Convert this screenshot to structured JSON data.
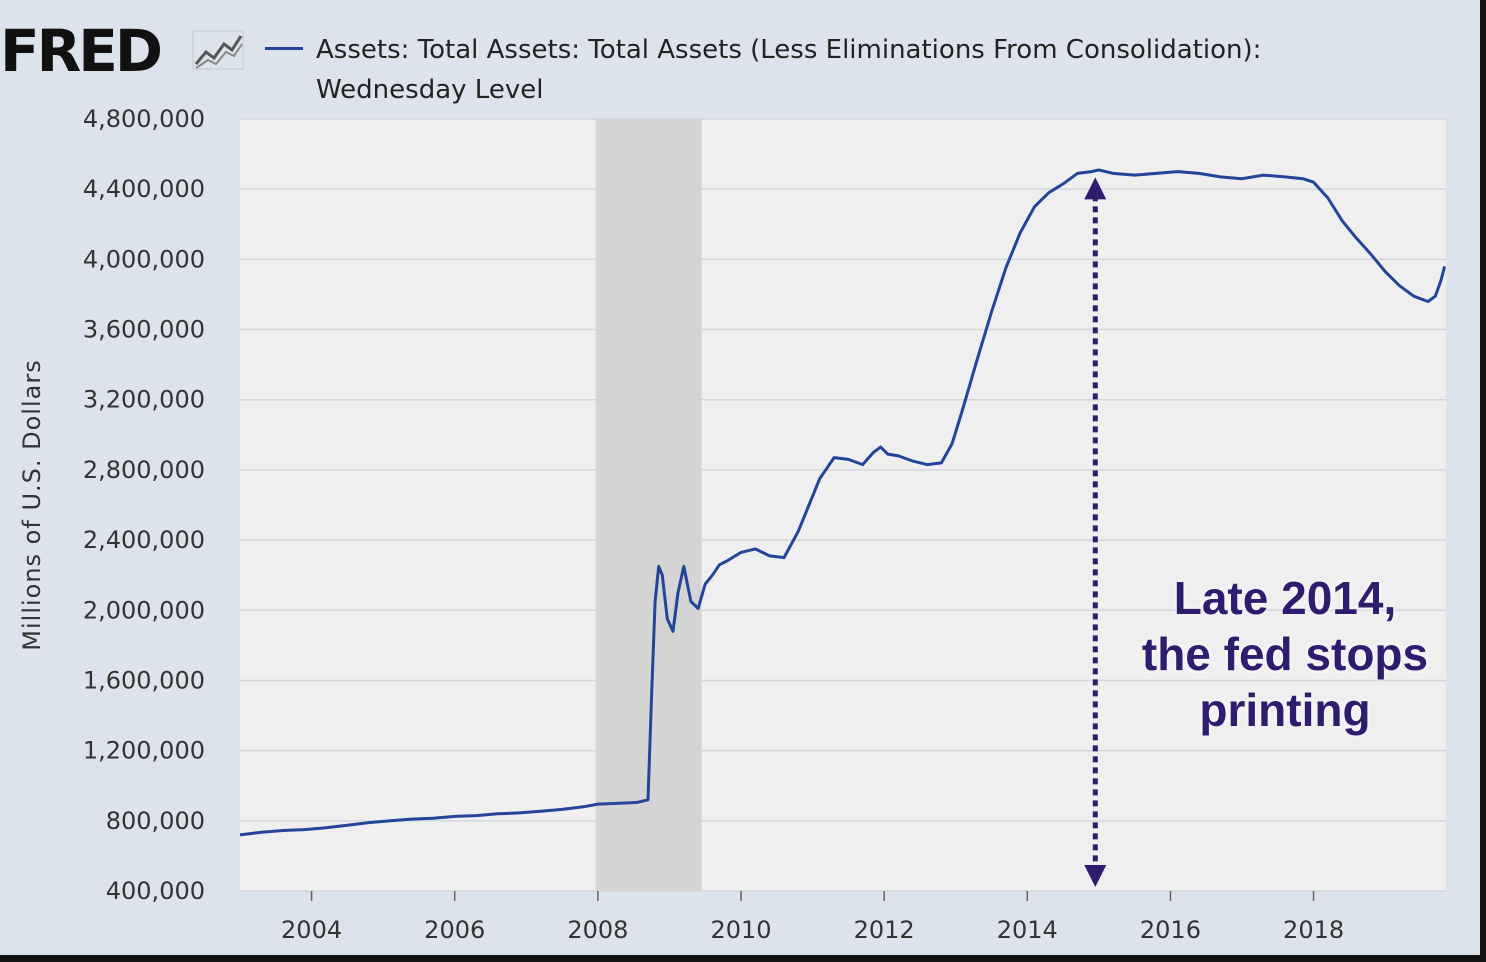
{
  "source": {
    "logo_text": "FRED",
    "logo_icon": "trend-line-icon"
  },
  "colors": {
    "series": "#22459a",
    "recession": "#d4d4d4",
    "plot_bg": "#efefef",
    "grid": "#d2d7df",
    "annotation": "#2f1c6e",
    "arrow": "#2f1c6e"
  },
  "chart_data": {
    "type": "line",
    "title": "Assets: Total Assets: Total Assets (Less Eliminations From Consolidation): Wednesday Level",
    "xlabel": "",
    "ylabel": "Millions of U.S. Dollars",
    "xlim": [
      2003.0,
      2019.85
    ],
    "ylim": [
      400000,
      4800000
    ],
    "grid": true,
    "legend": "top",
    "x_ticks": [
      2004,
      2006,
      2008,
      2010,
      2012,
      2014,
      2016,
      2018
    ],
    "x_tick_labels": [
      "2004",
      "2006",
      "2008",
      "2010",
      "2012",
      "2014",
      "2016",
      "2018"
    ],
    "y_ticks": [
      400000,
      800000,
      1200000,
      1600000,
      2000000,
      2400000,
      2800000,
      3200000,
      3600000,
      4000000,
      4400000,
      4800000
    ],
    "y_tick_labels": [
      "400,000",
      "800,000",
      "1,200,000",
      "1,600,000",
      "2,000,000",
      "2,400,000",
      "2,800,000",
      "3,200,000",
      "3,600,000",
      "4,000,000",
      "4,400,000",
      "4,800,000"
    ],
    "recession": {
      "start": 2007.97,
      "end": 2009.45
    },
    "series": [
      {
        "name": "Assets: Total Assets: Total Assets (Less Eliminations From Consolidation): Wednesday Level",
        "x": [
          2003.0,
          2003.3,
          2003.6,
          2003.9,
          2004.2,
          2004.5,
          2004.8,
          2005.1,
          2005.4,
          2005.7,
          2006.0,
          2006.3,
          2006.6,
          2006.9,
          2007.2,
          2007.5,
          2007.8,
          2008.0,
          2008.3,
          2008.55,
          2008.7,
          2008.75,
          2008.8,
          2008.85,
          2008.9,
          2008.97,
          2009.05,
          2009.12,
          2009.2,
          2009.3,
          2009.4,
          2009.5,
          2009.6,
          2009.7,
          2009.8,
          2010.0,
          2010.2,
          2010.4,
          2010.6,
          2010.8,
          2010.95,
          2011.1,
          2011.3,
          2011.5,
          2011.7,
          2011.85,
          2011.95,
          2012.05,
          2012.2,
          2012.4,
          2012.6,
          2012.8,
          2012.95,
          2013.1,
          2013.3,
          2013.5,
          2013.7,
          2013.9,
          2014.1,
          2014.3,
          2014.5,
          2014.7,
          2014.9,
          2015.0,
          2015.2,
          2015.5,
          2015.8,
          2016.1,
          2016.4,
          2016.7,
          2017.0,
          2017.3,
          2017.6,
          2017.85,
          2018.0,
          2018.2,
          2018.4,
          2018.6,
          2018.8,
          2019.0,
          2019.2,
          2019.4,
          2019.6,
          2019.7,
          2019.78,
          2019.83
        ],
        "values": [
          720000,
          735000,
          745000,
          750000,
          760000,
          775000,
          790000,
          800000,
          810000,
          815000,
          825000,
          830000,
          840000,
          845000,
          855000,
          865000,
          880000,
          895000,
          900000,
          905000,
          920000,
          1500000,
          2050000,
          2250000,
          2200000,
          1950000,
          1880000,
          2100000,
          2250000,
          2050000,
          2010000,
          2150000,
          2200000,
          2260000,
          2280000,
          2330000,
          2350000,
          2310000,
          2300000,
          2450000,
          2600000,
          2750000,
          2870000,
          2860000,
          2830000,
          2900000,
          2930000,
          2890000,
          2880000,
          2850000,
          2830000,
          2840000,
          2950000,
          3150000,
          3430000,
          3700000,
          3950000,
          4150000,
          4300000,
          4380000,
          4430000,
          4490000,
          4500000,
          4510000,
          4490000,
          4480000,
          4490000,
          4500000,
          4490000,
          4470000,
          4460000,
          4480000,
          4470000,
          4460000,
          4440000,
          4350000,
          4220000,
          4120000,
          4030000,
          3930000,
          3850000,
          3790000,
          3760000,
          3790000,
          3880000,
          3960000
        ]
      }
    ],
    "annotations": [
      {
        "text_lines": [
          "Late 2014,",
          "the fed stops",
          "printing"
        ]
      }
    ],
    "arrow": {
      "x": 2014.95,
      "y_from": 400000,
      "y_to": 4490000,
      "style": "dotted-double-arrow"
    }
  }
}
